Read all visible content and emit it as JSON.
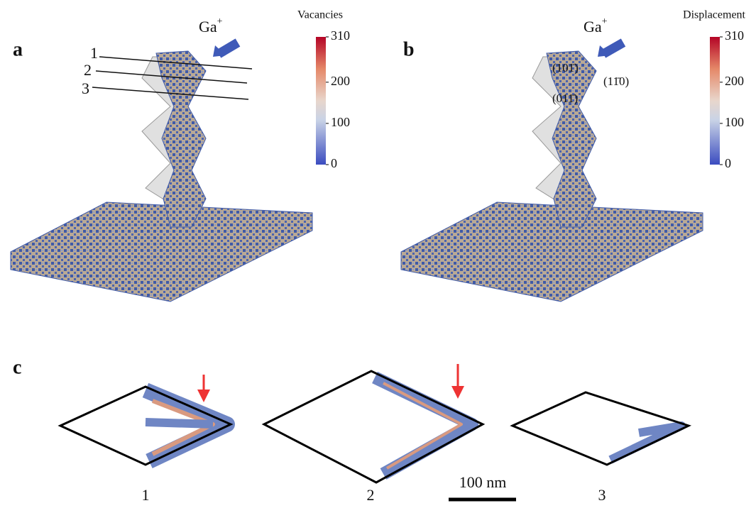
{
  "panels": [
    {
      "label": "a",
      "ion": {
        "text": "Ga",
        "sup": "+"
      },
      "colorbar": {
        "title": "Vacancies",
        "lim": [
          0,
          310
        ],
        "ticks": [
          0,
          100,
          200,
          310
        ]
      },
      "cut_labels": [
        "1",
        "2",
        "3"
      ]
    },
    {
      "label": "b",
      "ion": {
        "text": "Ga",
        "sup": "+"
      },
      "colorbar": {
        "title": "Displacement",
        "lim": [
          0,
          310
        ],
        "ticks": [
          0,
          100,
          200,
          310
        ]
      },
      "planes": [
        "(101̄)",
        "(11̄0)",
        "(011̄)"
      ]
    }
  ],
  "panel_c": {
    "label": "c",
    "sections": [
      "1",
      "2",
      "3"
    ],
    "scale_bar": "100 nm"
  }
}
